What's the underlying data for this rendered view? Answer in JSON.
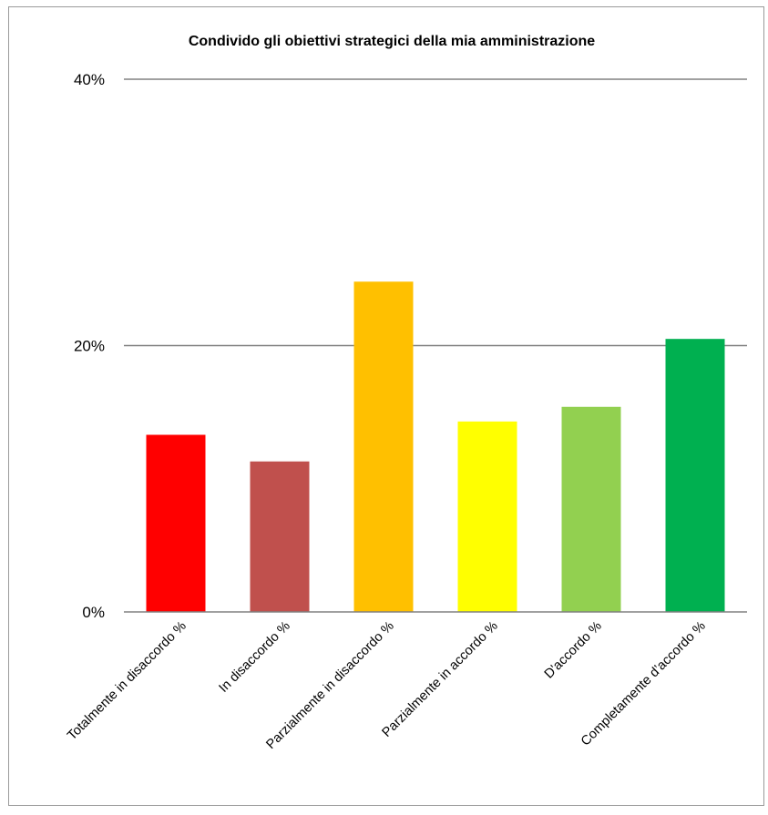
{
  "chart_data": {
    "type": "bar",
    "title": "Condivido gli obiettivi strategici della mia amministrazione",
    "categories": [
      "Totalmente in disaccordo %",
      "In disaccordo %",
      "Parzialmente in disaccordo %",
      "Parzialmente in accordo %",
      "D'accordo %",
      "Completamente d’accordo %"
    ],
    "values": [
      13.3,
      11.3,
      24.8,
      14.3,
      15.4,
      20.5
    ],
    "colors": [
      "#ff0000",
      "#c0504d",
      "#ffc000",
      "#ffff00",
      "#92d050",
      "#00b050"
    ],
    "ylim": [
      0,
      40
    ],
    "yticks": [
      0,
      20,
      40
    ],
    "ytick_labels": [
      "0%",
      "20%",
      "40%"
    ],
    "grid": true,
    "legend": "none"
  }
}
